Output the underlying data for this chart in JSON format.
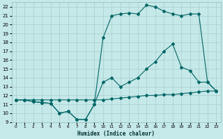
{
  "xlabel": "Humidex (Indice chaleur)",
  "xlim": [
    -0.5,
    23.5
  ],
  "ylim": [
    9,
    22.5
  ],
  "yticks": [
    9,
    10,
    11,
    12,
    13,
    14,
    15,
    16,
    17,
    18,
    19,
    20,
    21,
    22
  ],
  "xticks": [
    0,
    1,
    2,
    3,
    4,
    5,
    6,
    7,
    8,
    9,
    10,
    11,
    12,
    13,
    14,
    15,
    16,
    17,
    18,
    19,
    20,
    21,
    22,
    23
  ],
  "bg_color": "#c5e8e8",
  "grid_color": "#a8cece",
  "line_color": "#006666",
  "line1_x": [
    0,
    1,
    2,
    3,
    4,
    5,
    6,
    7,
    8,
    9,
    10,
    11,
    12,
    13,
    14,
    15,
    16,
    17,
    18,
    19,
    20,
    21,
    22,
    23
  ],
  "line1_y": [
    11.5,
    11.5,
    11.5,
    11.5,
    11.5,
    11.5,
    11.5,
    11.5,
    11.5,
    11.5,
    11.5,
    11.6,
    11.7,
    11.8,
    11.9,
    12.0,
    12.0,
    12.1,
    12.1,
    12.2,
    12.3,
    12.4,
    12.5,
    12.5
  ],
  "line2_x": [
    0,
    1,
    2,
    3,
    4,
    5,
    6,
    7,
    8,
    9,
    10,
    11,
    12,
    13,
    14,
    15,
    16,
    17,
    18,
    19,
    20,
    21,
    22,
    23
  ],
  "line2_y": [
    11.5,
    11.5,
    11.3,
    11.2,
    11.1,
    10.0,
    10.2,
    9.3,
    9.3,
    11.0,
    13.5,
    14.0,
    13.0,
    13.5,
    14.0,
    15.0,
    15.8,
    17.0,
    17.8,
    15.2,
    14.8,
    13.5,
    13.5,
    12.5
  ],
  "line3_x": [
    0,
    1,
    2,
    3,
    4,
    5,
    6,
    7,
    8,
    9,
    10,
    11,
    12,
    13,
    14,
    15,
    16,
    17,
    18,
    19,
    20,
    21,
    22,
    23
  ],
  "line3_y": [
    11.5,
    11.5,
    11.3,
    11.2,
    11.1,
    10.0,
    10.2,
    9.3,
    9.3,
    11.0,
    18.5,
    21.0,
    21.2,
    21.3,
    21.2,
    22.2,
    22.0,
    21.5,
    21.2,
    21.0,
    21.2,
    21.2,
    13.5,
    12.5
  ]
}
